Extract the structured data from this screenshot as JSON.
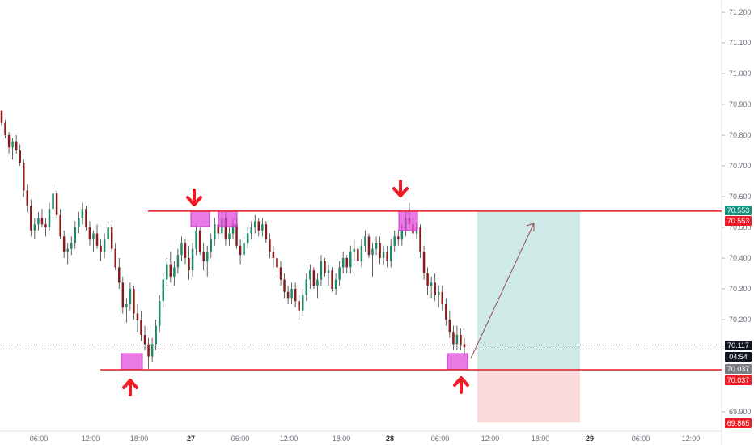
{
  "chart_data": {
    "type": "candlestick",
    "price_axis": {
      "range": [
        69.85,
        71.25
      ],
      "ticks": [
        "71.200",
        "71.100",
        "71.000",
        "70.900",
        "70.800",
        "70.700",
        "70.600",
        "70.500",
        "70.400",
        "70.300",
        "70.200",
        "69.900"
      ]
    },
    "time_axis": {
      "ticks": [
        {
          "label": "06:00",
          "bold": false
        },
        {
          "label": "12:00",
          "bold": false
        },
        {
          "label": "18:00",
          "bold": false
        },
        {
          "label": "27",
          "bold": true
        },
        {
          "label": "06:00",
          "bold": false
        },
        {
          "label": "12:00",
          "bold": false
        },
        {
          "label": "18:00",
          "bold": false
        },
        {
          "label": "28",
          "bold": true
        },
        {
          "label": "06:00",
          "bold": false
        },
        {
          "label": "12:00",
          "bold": false
        },
        {
          "label": "18:00",
          "bold": false
        },
        {
          "label": "29",
          "bold": true
        },
        {
          "label": "06:00",
          "bold": false
        },
        {
          "label": "12:00",
          "bold": false
        }
      ]
    },
    "levels": {
      "resistance": 70.553,
      "support": 70.037,
      "current": 70.117,
      "target_bottom": 69.865
    },
    "price_tags": [
      {
        "label": "70.553",
        "color": "#16907f"
      },
      {
        "label": "70.553",
        "color": "#ee1c25"
      },
      {
        "label": "70.117",
        "color": "#131722"
      },
      {
        "label": "04:54",
        "color": "#131722"
      },
      {
        "label": "70.037",
        "color": "#7a7d85"
      },
      {
        "label": "70.037",
        "color": "#ee1c25"
      },
      {
        "label": "69.865",
        "color": "#ee1c25"
      }
    ],
    "candles": [
      [
        70.88,
        70.88,
        70.83,
        70.84
      ],
      [
        70.84,
        70.85,
        70.79,
        70.8
      ],
      [
        70.8,
        70.81,
        70.74,
        70.76
      ],
      [
        70.76,
        70.79,
        70.72,
        70.78
      ],
      [
        70.78,
        70.8,
        70.74,
        70.75
      ],
      [
        70.75,
        70.77,
        70.7,
        70.71
      ],
      [
        70.71,
        70.72,
        70.6,
        70.62
      ],
      [
        70.62,
        70.64,
        70.55,
        70.57
      ],
      [
        70.57,
        70.59,
        70.47,
        70.49
      ],
      [
        70.49,
        70.53,
        70.46,
        70.51
      ],
      [
        70.51,
        70.55,
        70.49,
        70.53
      ],
      [
        70.53,
        70.56,
        70.5,
        70.51
      ],
      [
        70.51,
        70.53,
        70.47,
        70.5
      ],
      [
        70.5,
        70.58,
        70.49,
        70.56
      ],
      [
        70.56,
        70.64,
        70.54,
        70.61
      ],
      [
        70.61,
        70.62,
        70.53,
        70.54
      ],
      [
        70.54,
        70.56,
        70.46,
        70.47
      ],
      [
        70.47,
        70.49,
        70.4,
        70.42
      ],
      [
        70.42,
        70.45,
        70.38,
        70.43
      ],
      [
        70.43,
        70.47,
        70.41,
        70.45
      ],
      [
        70.45,
        70.52,
        70.43,
        70.5
      ],
      [
        70.5,
        70.55,
        70.48,
        70.53
      ],
      [
        70.53,
        70.58,
        70.51,
        70.56
      ],
      [
        70.56,
        70.57,
        70.49,
        70.5
      ],
      [
        70.5,
        70.52,
        70.44,
        70.46
      ],
      [
        70.46,
        70.49,
        70.42,
        70.48
      ],
      [
        70.48,
        70.51,
        70.43,
        70.44
      ],
      [
        70.44,
        70.46,
        70.39,
        70.42
      ],
      [
        70.42,
        70.48,
        70.4,
        70.46
      ],
      [
        70.46,
        70.52,
        70.44,
        70.5
      ],
      [
        70.5,
        70.51,
        70.42,
        70.43
      ],
      [
        70.43,
        70.45,
        70.36,
        70.37
      ],
      [
        70.37,
        70.4,
        70.3,
        70.32
      ],
      [
        70.32,
        70.34,
        70.22,
        70.24
      ],
      [
        70.24,
        70.27,
        70.19,
        70.25
      ],
      [
        70.25,
        70.32,
        70.23,
        70.3
      ],
      [
        70.3,
        70.31,
        70.2,
        70.22
      ],
      [
        70.22,
        70.25,
        70.16,
        70.2
      ],
      [
        70.2,
        70.23,
        70.13,
        70.15
      ],
      [
        70.15,
        70.18,
        70.1,
        70.12
      ],
      [
        70.12,
        70.14,
        70.04,
        70.08
      ],
      [
        70.08,
        70.14,
        70.06,
        70.12
      ],
      [
        70.12,
        70.2,
        70.1,
        70.18
      ],
      [
        70.18,
        70.28,
        70.16,
        70.26
      ],
      [
        70.26,
        70.35,
        70.24,
        70.33
      ],
      [
        70.33,
        70.4,
        70.31,
        70.38
      ],
      [
        70.38,
        70.42,
        70.32,
        70.34
      ],
      [
        70.34,
        70.39,
        70.31,
        70.37
      ],
      [
        70.37,
        70.43,
        70.35,
        70.41
      ],
      [
        70.41,
        70.47,
        70.39,
        70.45
      ],
      [
        70.45,
        70.46,
        70.38,
        70.4
      ],
      [
        70.4,
        70.44,
        70.33,
        70.36
      ],
      [
        70.36,
        70.45,
        70.34,
        70.43
      ],
      [
        70.43,
        70.51,
        70.41,
        70.49
      ],
      [
        70.49,
        70.5,
        70.41,
        70.42
      ],
      [
        70.42,
        70.45,
        70.36,
        70.39
      ],
      [
        70.39,
        70.44,
        70.34,
        70.42
      ],
      [
        70.42,
        70.48,
        70.4,
        70.46
      ],
      [
        70.46,
        70.53,
        70.44,
        70.51
      ],
      [
        70.51,
        70.55,
        70.46,
        70.48
      ],
      [
        70.48,
        70.55,
        70.46,
        70.53
      ],
      [
        70.53,
        70.55,
        70.44,
        70.46
      ],
      [
        70.46,
        70.5,
        70.44,
        70.48
      ],
      [
        70.48,
        70.53,
        70.46,
        70.51
      ],
      [
        70.51,
        70.53,
        70.43,
        70.44
      ],
      [
        70.44,
        70.46,
        70.38,
        70.41
      ],
      [
        70.41,
        70.47,
        70.39,
        70.45
      ],
      [
        70.45,
        70.5,
        70.43,
        70.48
      ],
      [
        70.48,
        70.52,
        70.46,
        70.5
      ],
      [
        70.5,
        70.54,
        70.48,
        70.52
      ],
      [
        70.52,
        70.53,
        70.47,
        70.49
      ],
      [
        70.49,
        70.53,
        70.47,
        70.51
      ],
      [
        70.51,
        70.52,
        70.45,
        70.46
      ],
      [
        70.46,
        70.48,
        70.4,
        70.42
      ],
      [
        70.42,
        70.44,
        70.37,
        70.4
      ],
      [
        70.4,
        70.42,
        70.35,
        70.37
      ],
      [
        70.37,
        70.39,
        70.31,
        70.33
      ],
      [
        70.33,
        70.35,
        70.27,
        70.29
      ],
      [
        70.29,
        70.31,
        70.25,
        70.27
      ],
      [
        70.27,
        70.32,
        70.25,
        70.3
      ],
      [
        70.3,
        70.32,
        70.24,
        70.26
      ],
      [
        70.26,
        70.28,
        70.2,
        70.23
      ],
      [
        70.23,
        70.3,
        70.21,
        70.28
      ],
      [
        70.28,
        70.35,
        70.26,
        70.33
      ],
      [
        70.33,
        70.38,
        70.3,
        70.36
      ],
      [
        70.36,
        70.37,
        70.3,
        70.31
      ],
      [
        70.31,
        70.35,
        70.27,
        70.33
      ],
      [
        70.33,
        70.41,
        70.31,
        70.39
      ],
      [
        70.39,
        70.4,
        70.34,
        70.35
      ],
      [
        70.35,
        70.38,
        70.31,
        70.36
      ],
      [
        70.36,
        70.37,
        70.29,
        70.3
      ],
      [
        70.3,
        70.35,
        70.28,
        70.33
      ],
      [
        70.33,
        70.39,
        70.31,
        70.37
      ],
      [
        70.37,
        70.42,
        70.35,
        70.4
      ],
      [
        70.4,
        70.41,
        70.35,
        70.37
      ],
      [
        70.37,
        70.44,
        70.35,
        70.42
      ],
      [
        70.42,
        70.46,
        70.39,
        70.43
      ],
      [
        70.43,
        70.44,
        70.38,
        70.39
      ],
      [
        70.39,
        70.46,
        70.37,
        70.44
      ],
      [
        70.44,
        70.49,
        70.42,
        70.47
      ],
      [
        70.47,
        70.48,
        70.4,
        70.41
      ],
      [
        70.41,
        70.45,
        70.34,
        70.43
      ],
      [
        70.43,
        70.47,
        70.41,
        70.45
      ],
      [
        70.45,
        70.47,
        70.38,
        70.4
      ],
      [
        70.4,
        70.44,
        70.38,
        70.42
      ],
      [
        70.42,
        70.44,
        70.37,
        70.39
      ],
      [
        70.39,
        70.46,
        70.37,
        70.44
      ],
      [
        70.44,
        70.49,
        70.42,
        70.47
      ],
      [
        70.47,
        70.49,
        70.44,
        70.46
      ],
      [
        70.46,
        70.51,
        70.44,
        70.49
      ],
      [
        70.49,
        70.55,
        70.47,
        70.53
      ],
      [
        70.53,
        70.58,
        70.5,
        70.51
      ],
      [
        70.51,
        70.53,
        70.46,
        70.48
      ],
      [
        70.48,
        70.52,
        70.46,
        70.5
      ],
      [
        70.5,
        70.51,
        70.4,
        70.42
      ],
      [
        70.42,
        70.44,
        70.33,
        70.35
      ],
      [
        70.35,
        70.37,
        70.28,
        70.31
      ],
      [
        70.31,
        70.34,
        70.27,
        70.32
      ],
      [
        70.32,
        70.35,
        70.26,
        70.28
      ],
      [
        70.28,
        70.31,
        70.24,
        70.29
      ],
      [
        70.29,
        70.31,
        70.23,
        70.25
      ],
      [
        70.25,
        70.27,
        70.18,
        70.2
      ],
      [
        70.2,
        70.23,
        70.14,
        70.16
      ],
      [
        70.16,
        70.18,
        70.1,
        70.12
      ],
      [
        70.12,
        70.18,
        70.1,
        70.15
      ],
      [
        70.15,
        70.17,
        70.1,
        70.12
      ],
      [
        70.12,
        70.14,
        70.08,
        70.11
      ]
    ]
  }
}
